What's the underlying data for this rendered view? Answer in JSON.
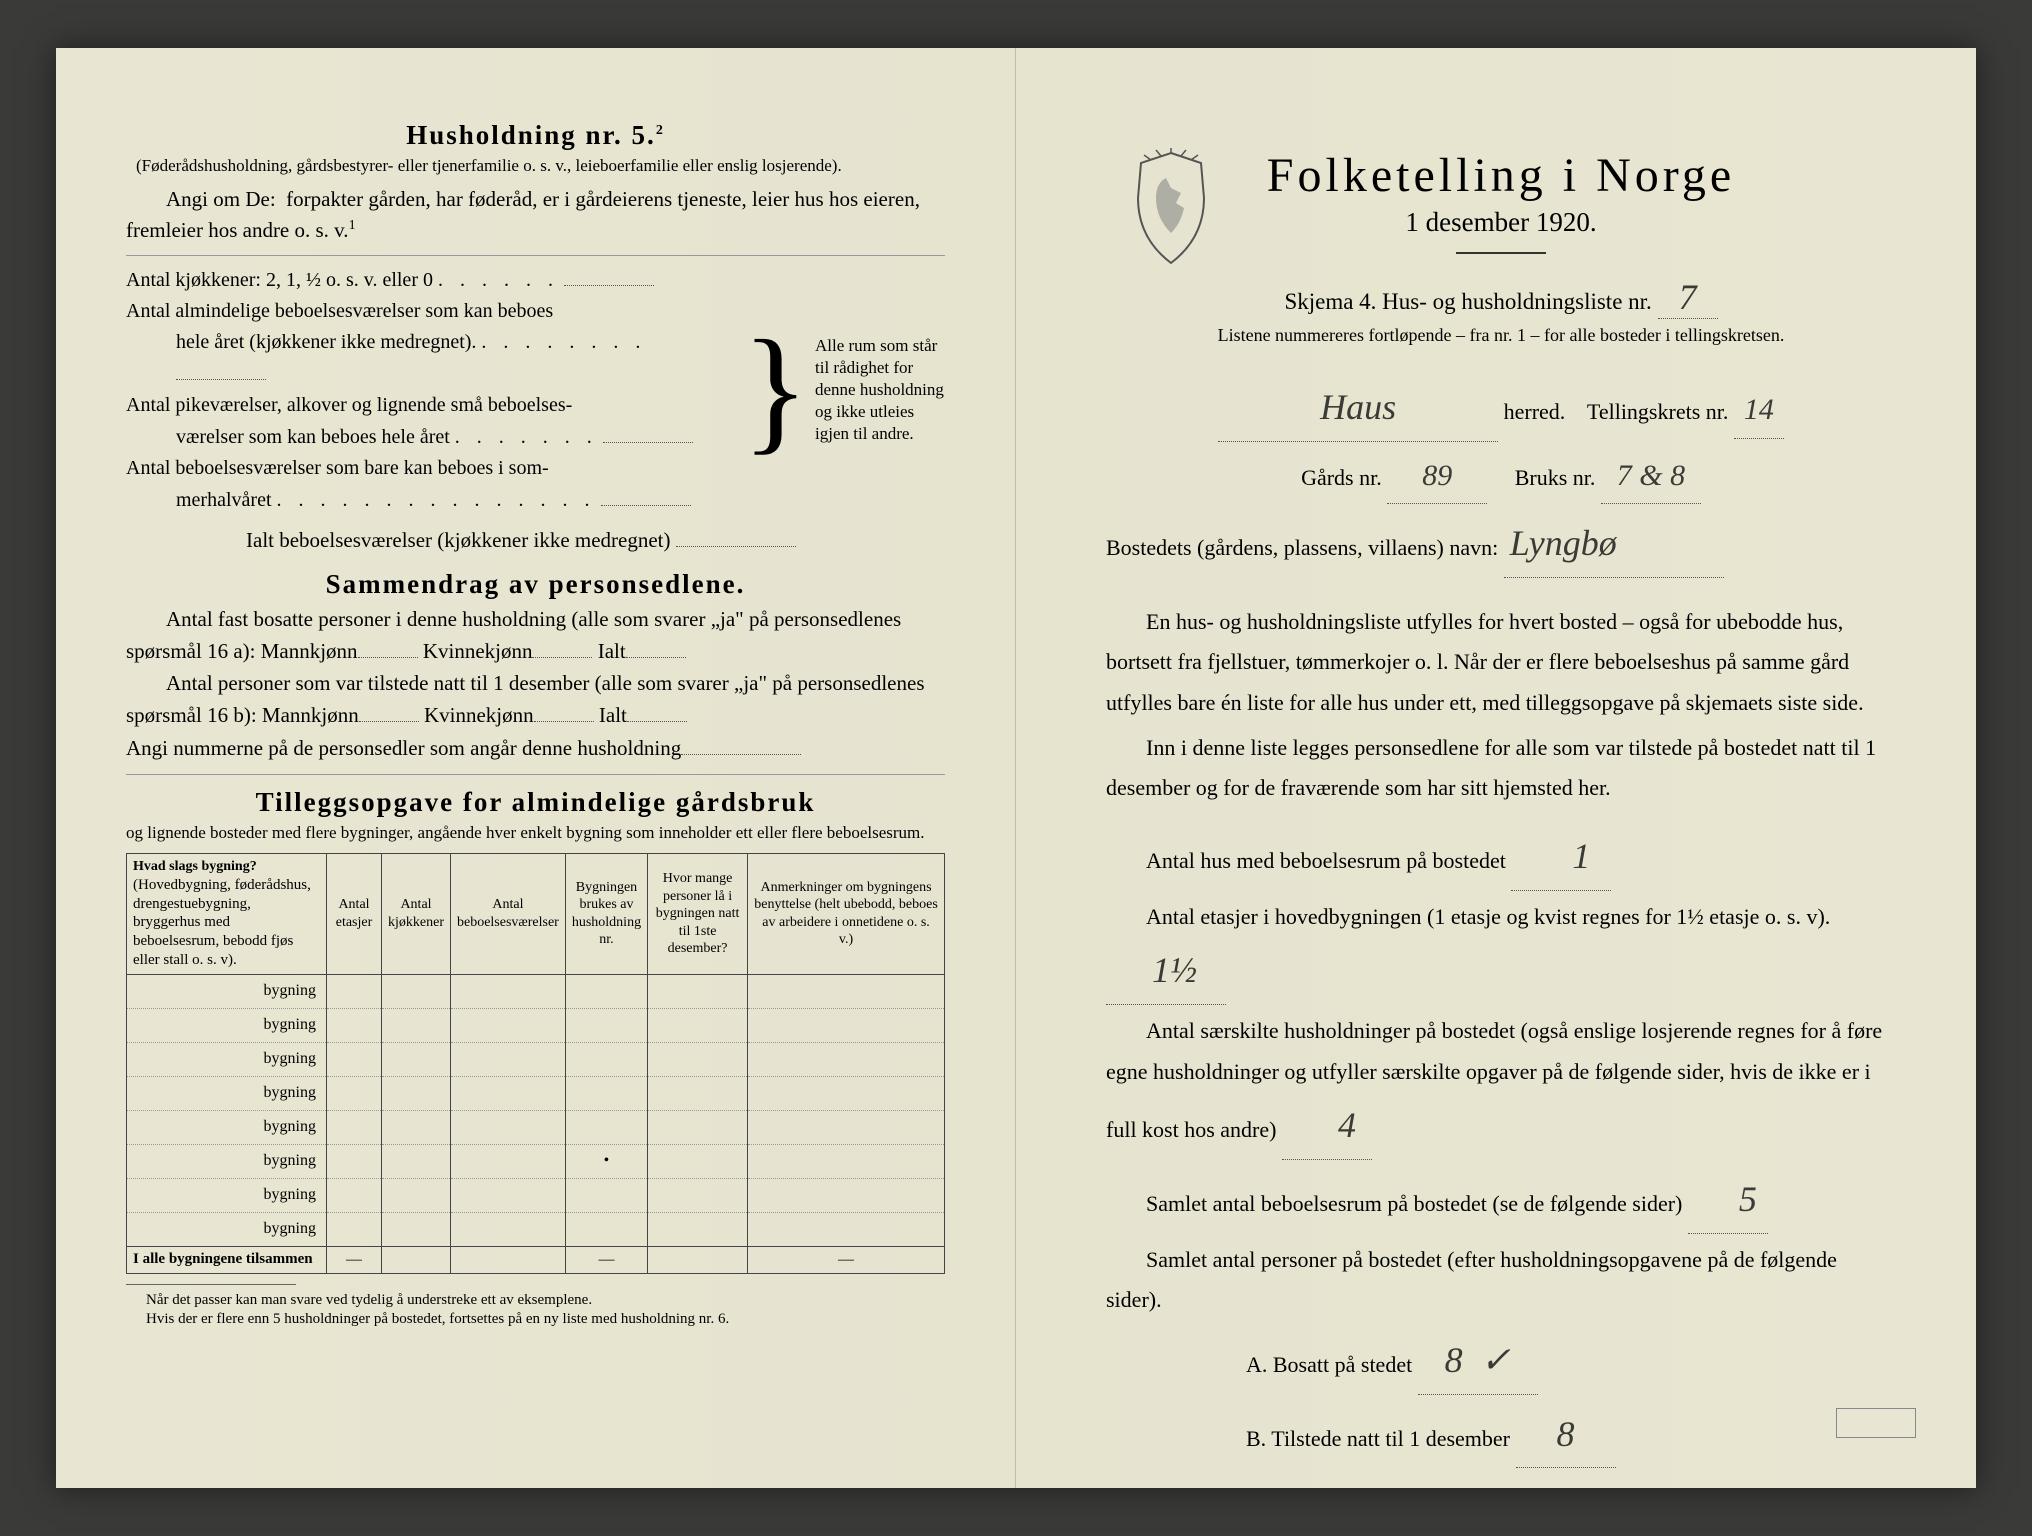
{
  "left": {
    "title": "Husholdning nr. 5.",
    "title_sup": "2",
    "para1": "(Føderådshusholdning, gårdsbestyrer- eller tjenerfamilie o. s. v., leieboerfamilie eller enslig losjerende).",
    "para2_lead": "Angi om De:",
    "para2": "forpakter gården, har føderåd, er i gårdeierens tjeneste, leier hus hos eieren, fremleier hos andre o. s. v.",
    "para2_sup": "1",
    "rooms": {
      "l1": "Antal kjøkkener: 2, 1, ½ o. s. v. eller 0",
      "l2a": "Antal almindelige beboelsesværelser som kan beboes",
      "l2b": "hele året (kjøkkener ikke medregnet).",
      "l3a": "Antal pikeværelser, alkover og lignende små beboelses-",
      "l3b": "værelser som kan beboes hele året",
      "l4a": "Antal beboelsesværelser som bare kan beboes i som-",
      "l4b": "merhalvåret",
      "total": "Ialt beboelsesværelser  (kjøkkener ikke medregnet)",
      "bracket": "Alle rum som står til rådighet for denne husholdning og ikke utleies igjen til andre."
    },
    "sammen_title": "Sammendrag av personsedlene.",
    "sammen_p1a": "Antal fast bosatte personer i denne husholdning (alle som svarer „ja\" på personsedlenes spørsmål 16 a): Mannkjønn",
    "sammen_kv": "Kvinnekjønn",
    "sammen_ialt": "Ialt",
    "sammen_p2a": "Antal personer som var tilstede natt til 1 desember (alle som svarer „ja\" på personsedlenes spørsmål 16 b): Mannkjønn",
    "sammen_p3": "Angi nummerne på de personsedler som angår denne husholdning",
    "tillegg_title": "Tilleggsopgave for almindelige gårdsbruk",
    "tillegg_intro": "og lignende bosteder med flere bygninger, angående hver enkelt bygning som inneholder ett eller flere beboelsesrum.",
    "table": {
      "h1": "Hvad slags bygning?",
      "h1_sub": "(Hovedbygning, føderådshus, drengestuebygning, bryggerhus med beboelsesrum, bebodd fjøs eller stall o. s. v).",
      "h2": "Antal etasjer",
      "h3": "Antal kjøkkener",
      "h4": "Antal beboelsesværelser",
      "h5": "Bygningen brukes av husholdning nr.",
      "h6": "Hvor mange personer lå i bygningen natt til 1ste desember?",
      "h7": "Anmerkninger om bygningens benyttelse (helt ubebodd, beboes av arbeidere i onnetidene o. s. v.)",
      "row_label": "bygning",
      "total_row": "I alle bygningene tilsammen"
    },
    "footnote": "Når det passer kan man svare ved tydelig å understreke ett av eksemplene.\nHvis der er flere enn 5 husholdninger på bostedet, fortsettes på en ny liste med husholdning nr. 6."
  },
  "right": {
    "title": "Folketelling i Norge",
    "subtitle": "1 desember 1920.",
    "skjema": "Skjema 4.  Hus- og husholdningsliste nr.",
    "skjema_val": "7",
    "listene": "Listene nummereres fortløpende – fra nr. 1 – for alle bosteder i tellingskretsen.",
    "herred_val": "Haus",
    "herred_lbl": "herred.",
    "krets_lbl": "Tellingskrets nr.",
    "krets_val": "14",
    "gards_lbl": "Gårds nr.",
    "gards_val": "89",
    "bruks_lbl": "Bruks nr.",
    "bruks_val": "7 & 8",
    "bosted_lbl": "Bostedets (gårdens, plassens, villaens) navn:",
    "bosted_val": "Lyngbø",
    "para1": "En hus- og husholdningsliste utfylles for hvert bosted – også for ubebodde hus, bortsett fra fjellstuer, tømmerkojer o. l.  Når der er flere beboelseshus på samme gård utfylles bare én liste for alle hus under ett, med tilleggsopgave på skjemaets siste side.",
    "para2": "Inn i denne liste legges personsedlene for alle som var tilstede på bostedet natt til 1 desember og for de fraværende som har sitt hjemsted her.",
    "q1_lbl": "Antal hus med beboelsesrum på bostedet",
    "q1_val": "1",
    "q2a": "Antal etasjer i hovedbygningen (1 etasje og kvist regnes for 1½ etasje o. s. v).",
    "q2_val": "1½",
    "q3": "Antal særskilte husholdninger på bostedet (også enslige losjerende regnes for å føre egne husholdninger og utfyller særskilte opgaver på de følgende sider, hvis de ikke er i full kost hos andre)",
    "q3_val": "4",
    "q4_lbl": "Samlet antal beboelsesrum på bostedet (se de følgende sider)",
    "q4_val": "5",
    "q5": "Samlet antal personer på bostedet (efter husholdningsopgavene på de følgende sider).",
    "qA_lbl": "A.  Bosatt på stedet",
    "qA_val": "8",
    "qA_mark": "✓",
    "qB_lbl": "B.  Tilstede natt til 1 desember",
    "qB_val": "8"
  }
}
